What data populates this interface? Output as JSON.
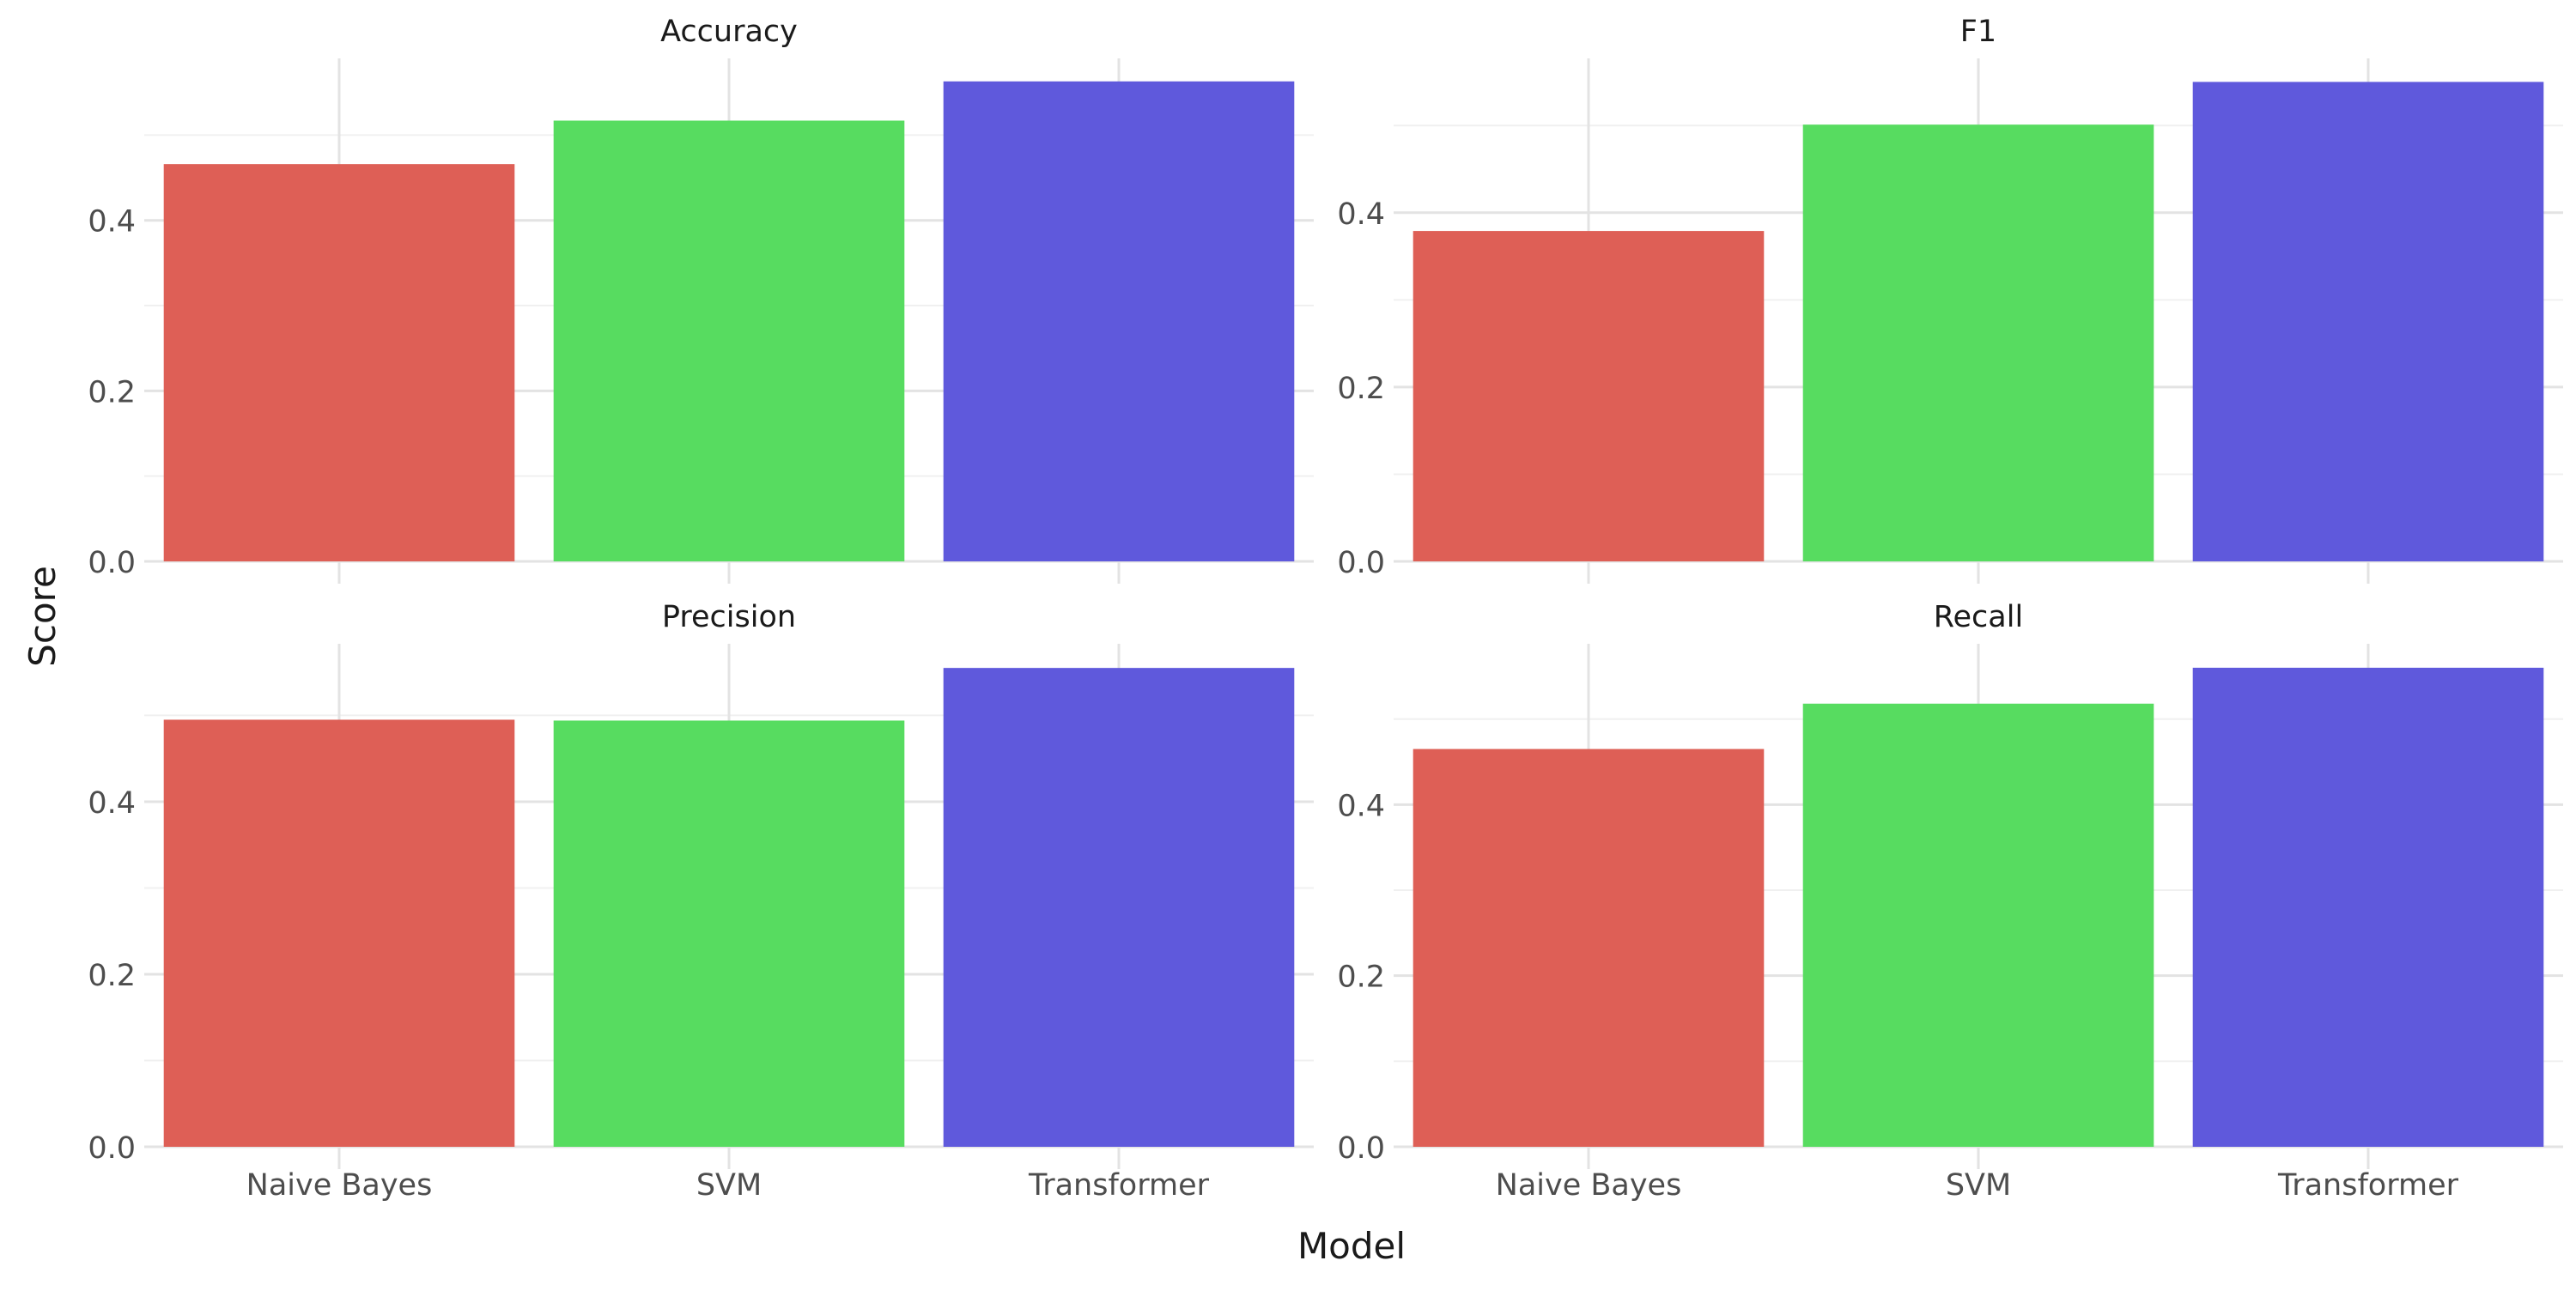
{
  "chart_data": {
    "type": "bar",
    "xlabel": "Model",
    "ylabel": "Score",
    "categories": [
      "Naive Bayes",
      "SVM",
      "Transformer"
    ],
    "category_colors": [
      "#de5f56",
      "#57dc60",
      "#5f59dc"
    ],
    "grid": true,
    "legend": "none",
    "panels": [
      {
        "title": "Accuracy",
        "values": [
          0.466,
          0.517,
          0.563
        ],
        "ylim": [
          0,
          0.59
        ],
        "yticks": [
          "0.0",
          "0.2",
          "0.4"
        ]
      },
      {
        "title": "F1",
        "values": [
          0.379,
          0.501,
          0.55
        ],
        "ylim": [
          0,
          0.577
        ],
        "yticks": [
          "0.0",
          "0.2",
          "0.4"
        ]
      },
      {
        "title": "Precision",
        "values": [
          0.495,
          0.494,
          0.555
        ],
        "ylim": [
          0,
          0.583
        ],
        "yticks": [
          "0.0",
          "0.2",
          "0.4"
        ]
      },
      {
        "title": "Recall",
        "values": [
          0.465,
          0.518,
          0.56
        ],
        "ylim": [
          0,
          0.588
        ],
        "yticks": [
          "0.0",
          "0.2",
          "0.4"
        ]
      }
    ]
  }
}
